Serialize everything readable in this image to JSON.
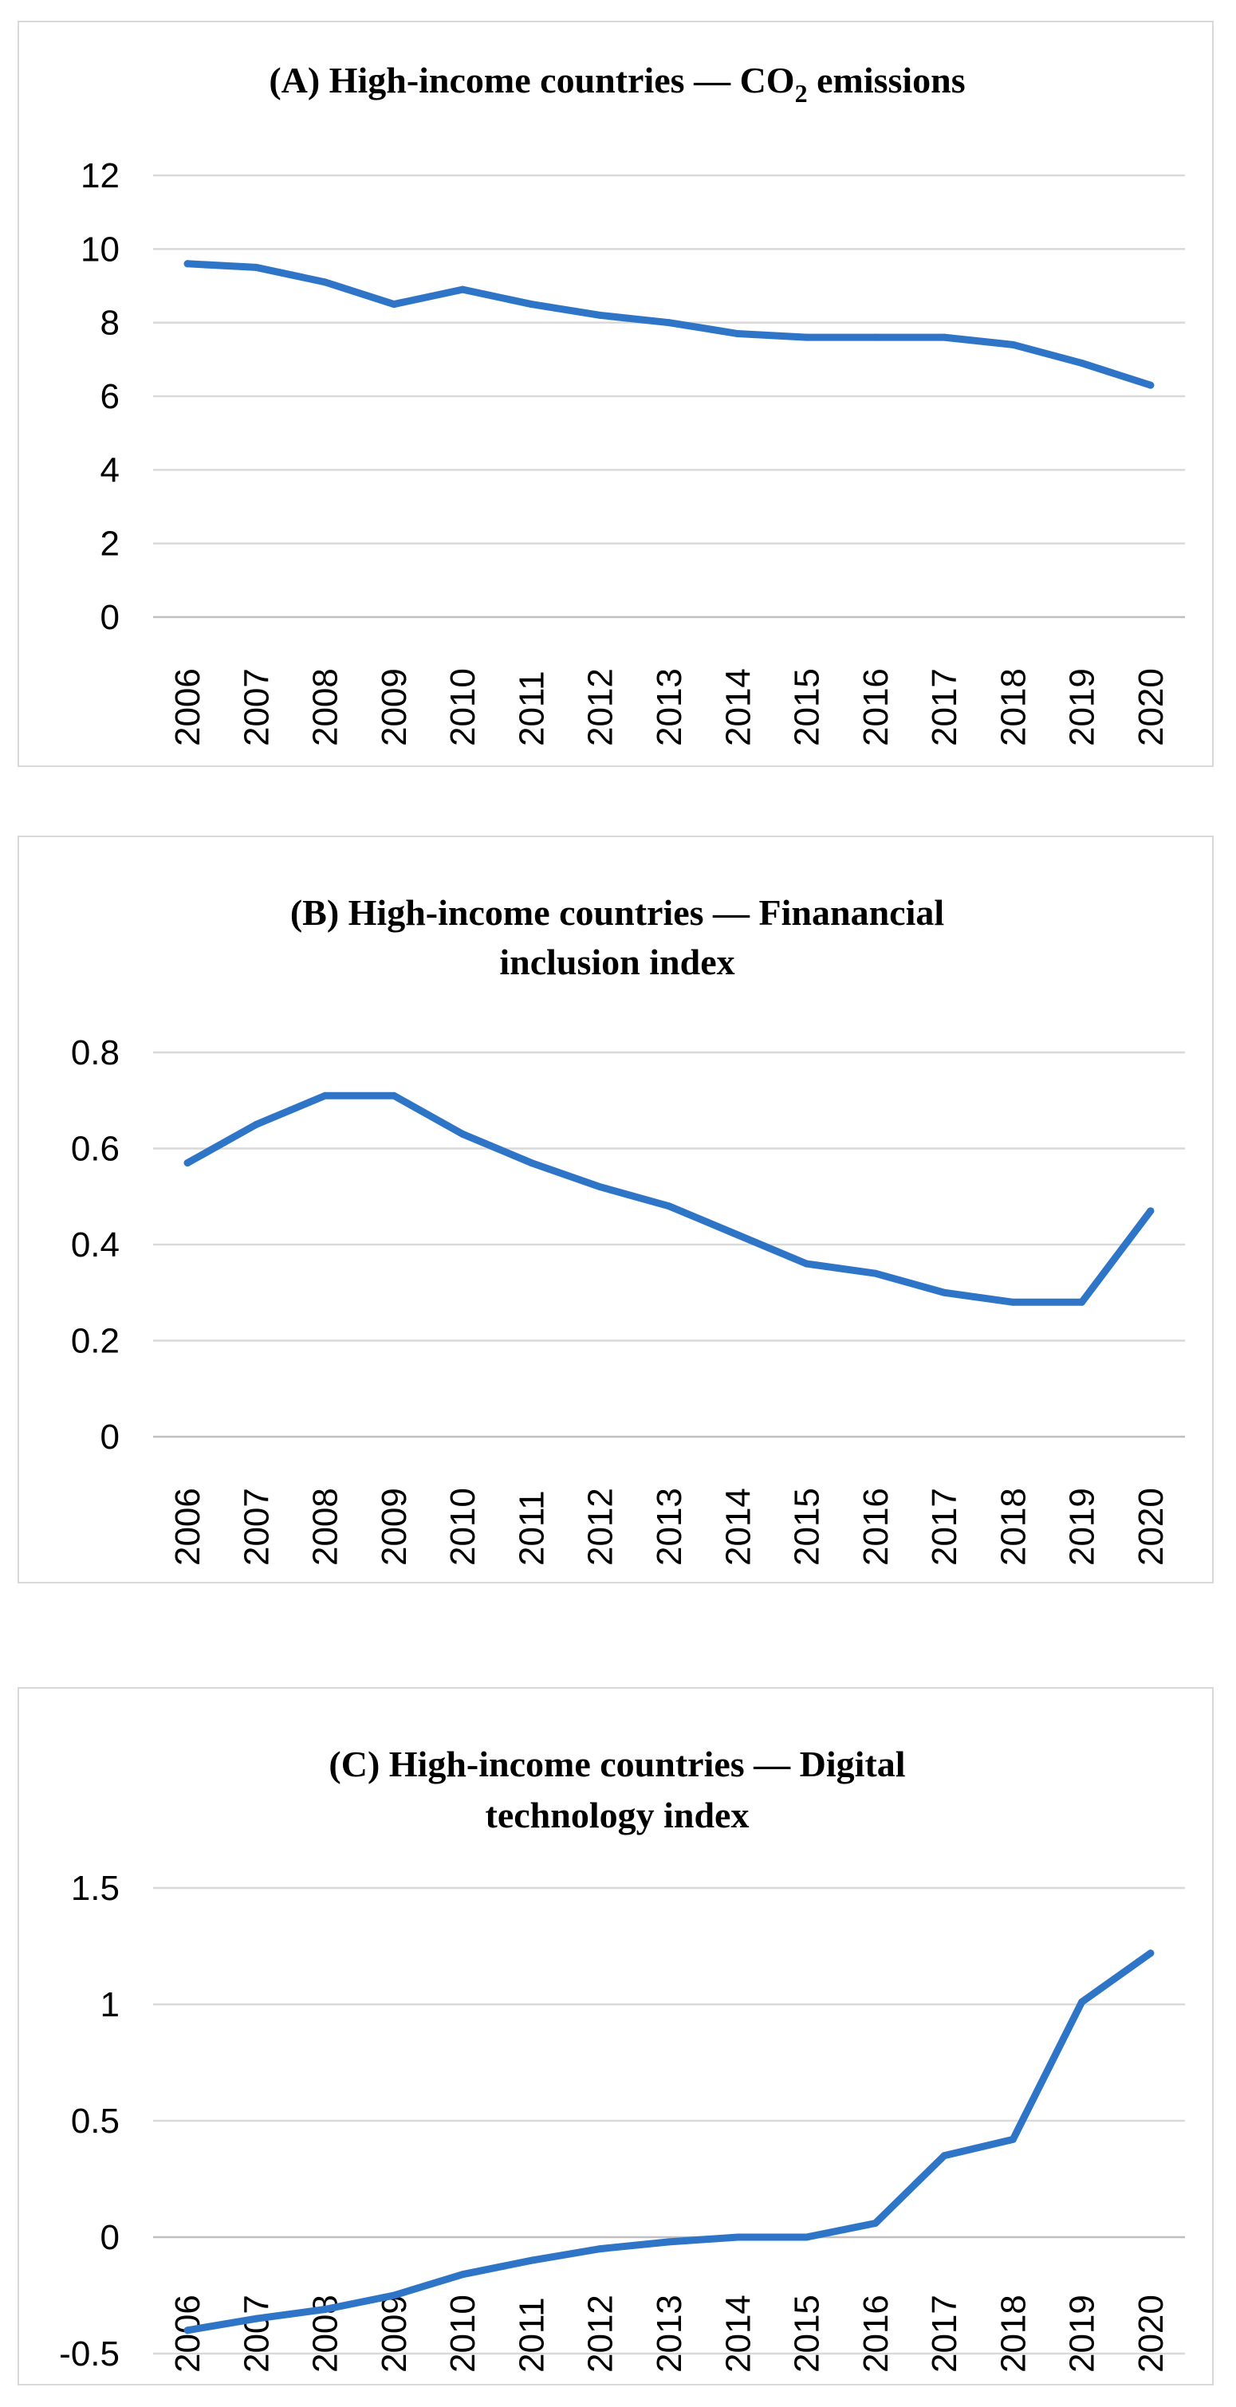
{
  "chart_data": [
    {
      "type": "line",
      "title": "(A) High-income countries — CO₂ emissions",
      "title_parts": {
        "prefix": "(A) High-income countries — CO",
        "subscript": "2",
        "suffix": " emissions"
      },
      "title_lines": [],
      "categories": [
        "2006",
        "2007",
        "2008",
        "2009",
        "2010",
        "2011",
        "2012",
        "2013",
        "2014",
        "2015",
        "2016",
        "2017",
        "2018",
        "2019",
        "2020"
      ],
      "series": [
        {
          "name": "CO2 emissions",
          "values": [
            9.6,
            9.5,
            9.1,
            8.5,
            8.9,
            8.5,
            8.2,
            8.0,
            7.7,
            7.6,
            7.6,
            7.6,
            7.4,
            6.9,
            6.3
          ]
        }
      ],
      "ylim": [
        0,
        12
      ],
      "yticks": [
        0,
        2,
        4,
        6,
        8,
        10,
        12
      ],
      "ytick_labels": [
        "0",
        "2",
        "4",
        "6",
        "8",
        "10",
        "12"
      ],
      "xlabel": "",
      "ylabel": "",
      "grid": true,
      "legend": "none",
      "color": "#2e75c7"
    },
    {
      "type": "line",
      "title": "(B) High-income countries — Finanancial inclusion index",
      "title_lines": [
        "(B) High-income countries — Finanancial",
        "inclusion index"
      ],
      "categories": [
        "2006",
        "2007",
        "2008",
        "2009",
        "2010",
        "2011",
        "2012",
        "2013",
        "2014",
        "2015",
        "2016",
        "2017",
        "2018",
        "2019",
        "2020"
      ],
      "series": [
        {
          "name": "Financial inclusion index",
          "values": [
            0.57,
            0.65,
            0.71,
            0.71,
            0.63,
            0.57,
            0.52,
            0.48,
            0.42,
            0.36,
            0.34,
            0.3,
            0.28,
            0.28,
            0.47
          ]
        }
      ],
      "ylim": [
        0,
        0.8
      ],
      "yticks": [
        0,
        0.2,
        0.4,
        0.6,
        0.8
      ],
      "ytick_labels": [
        "0",
        "0.2",
        "0.4",
        "0.6",
        "0.8"
      ],
      "xlabel": "",
      "ylabel": "",
      "grid": true,
      "legend": "none",
      "color": "#2e75c7"
    },
    {
      "type": "line",
      "title": "(C) High-income countries — Digital technology index",
      "title_lines": [
        "(C) High-income countries — Digital",
        "technology index"
      ],
      "categories": [
        "2006",
        "2007",
        "2008",
        "2009",
        "2010",
        "2011",
        "2012",
        "2013",
        "2014",
        "2015",
        "2016",
        "2017",
        "2018",
        "2019",
        "2020"
      ],
      "series": [
        {
          "name": "Digital technology index",
          "values": [
            -0.4,
            -0.35,
            -0.31,
            -0.25,
            -0.16,
            -0.1,
            -0.05,
            -0.02,
            0.0,
            0.0,
            0.06,
            0.35,
            0.42,
            1.01,
            1.22
          ]
        }
      ],
      "ylim": [
        -0.5,
        1.5
      ],
      "yticks": [
        -0.5,
        0,
        0.5,
        1,
        1.5
      ],
      "ytick_labels": [
        "-0.5",
        "0",
        "0.5",
        "1",
        "1.5"
      ],
      "xlabel": "",
      "ylabel": "",
      "grid": true,
      "legend": "none",
      "color": "#2e75c7"
    }
  ]
}
